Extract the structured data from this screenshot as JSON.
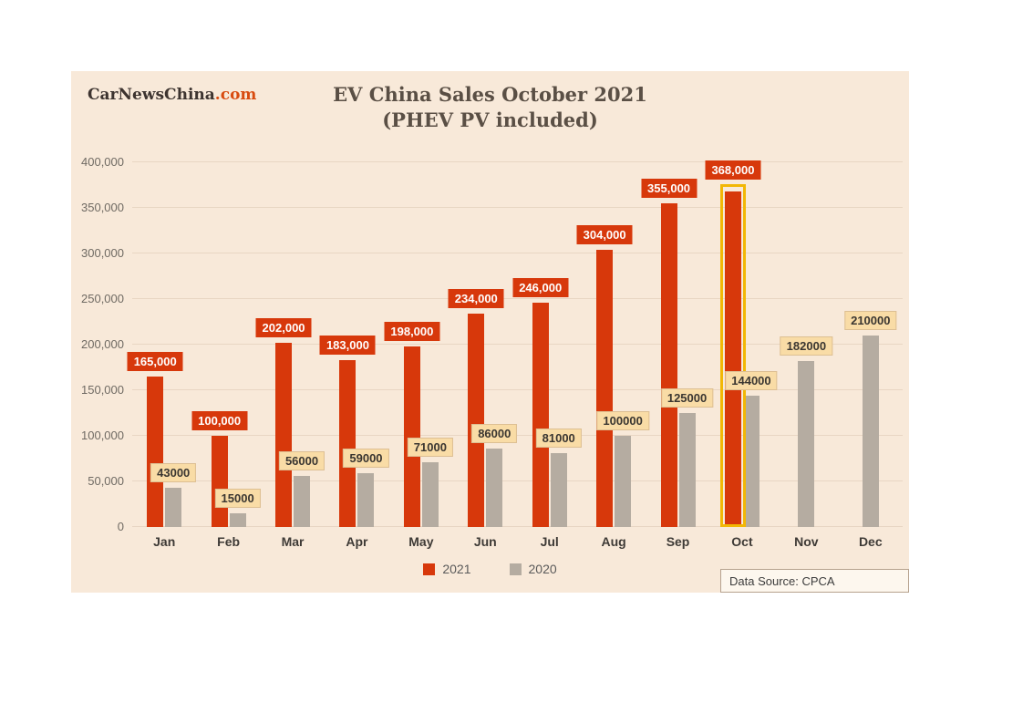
{
  "brand": {
    "name": "CarNewsChina",
    "suffix": ".com"
  },
  "header": {
    "title_line1": "EV China Sales October 2021",
    "title_line2": "(PHEV PV included)"
  },
  "source_box": {
    "text": "Data Source: CPCA"
  },
  "chart_data": {
    "type": "bar",
    "title": "EV China Sales October 2021 (PHEV PV included)",
    "categories": [
      "Jan",
      "Feb",
      "Mar",
      "Apr",
      "May",
      "Jun",
      "Jul",
      "Aug",
      "Sep",
      "Oct",
      "Nov",
      "Dec"
    ],
    "series": [
      {
        "name": "2021",
        "color": "#d7380b",
        "values": [
          165000,
          100000,
          202000,
          183000,
          198000,
          234000,
          246000,
          304000,
          355000,
          368000,
          null,
          null
        ],
        "labels": [
          "165,000",
          "100,000",
          "202,000",
          "183,000",
          "198,000",
          "234,000",
          "246,000",
          "304,000",
          "355,000",
          "368,000",
          null,
          null
        ]
      },
      {
        "name": "2020",
        "color": "#b5aca1",
        "values": [
          43000,
          15000,
          56000,
          59000,
          71000,
          86000,
          81000,
          100000,
          125000,
          144000,
          182000,
          210000
        ],
        "labels": [
          "43000",
          "15000",
          "56000",
          "59000",
          "71000",
          "86000",
          "81000",
          "100000",
          "125000",
          "144000",
          "182000",
          "210000"
        ]
      }
    ],
    "ylim": [
      0,
      400000
    ],
    "ytick_values": [
      0,
      50000,
      100000,
      150000,
      200000,
      250000,
      300000,
      350000,
      400000
    ],
    "ytick_labels": [
      "0",
      "50,000",
      "100,000",
      "150,000",
      "200,000",
      "250,000",
      "300,000",
      "350,000",
      "400,000"
    ],
    "highlight": {
      "category": "Oct",
      "series": "2021",
      "color": "#f2b705"
    },
    "grid": true,
    "legend_position": "bottom",
    "background_color": "#f8e9d9",
    "source": "Data Source: CPCA"
  }
}
